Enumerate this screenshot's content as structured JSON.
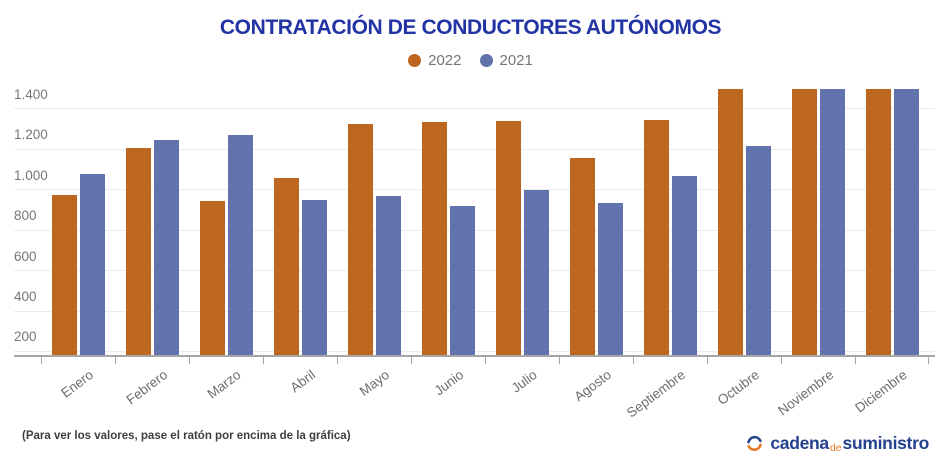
{
  "header": {
    "title": "CONTRATACIÓN DE CONDUCTORES AUTÓNOMOS"
  },
  "legend": {
    "items": [
      {
        "label": "2022"
      },
      {
        "label": "2021"
      }
    ]
  },
  "footer": {
    "note": "(Para ver los valores, pase el ratón por encima de la gráfica)"
  },
  "logo": {
    "icon": "circular-arrows-icon",
    "word1": "cadena",
    "word2": "de",
    "word3": "suministro"
  },
  "colors": {
    "series_2022": "#bd661f",
    "series_2021": "#6272ad",
    "title": "#2233a3",
    "axis_text": "#767676",
    "gridline": "#ebebeb",
    "axis_line": "#a6a6a6",
    "footer_text": "#3f3f3f",
    "logo_blue": "#24418e",
    "logo_orange": "#e87723"
  },
  "chart_data": {
    "type": "bar",
    "title": "CONTRATACIÓN DE CONDUCTORES AUTÓNOMOS",
    "xlabel": "",
    "ylabel": "",
    "categories": [
      "Enero",
      "Febrero",
      "Marzo",
      "Abril",
      "Mayo",
      "Junio",
      "Julio",
      "Agosto",
      "Septiembre",
      "Octubre",
      "Noviembre",
      "Diciembre"
    ],
    "series": [
      {
        "name": "2022",
        "color": "#bd661f",
        "values": [
          975,
          1210,
          945,
          1060,
          1325,
          1335,
          1340,
          1160,
          1345,
          1500,
          1500,
          1500
        ]
      },
      {
        "name": "2021",
        "color": "#6272ad",
        "values": [
          1080,
          1250,
          1275,
          950,
          970,
          920,
          1000,
          935,
          1070,
          1220,
          1500,
          1500
        ]
      }
    ],
    "ylim": [
      180,
      1500
    ],
    "yticks": [
      {
        "value": 200,
        "label": "200"
      },
      {
        "value": 400,
        "label": "400"
      },
      {
        "value": 600,
        "label": "600"
      },
      {
        "value": 800,
        "label": "800"
      },
      {
        "value": 1000,
        "label": "1.000"
      },
      {
        "value": 1200,
        "label": "1.200"
      },
      {
        "value": 1400,
        "label": "1.400"
      }
    ],
    "grid": true,
    "legend_position": "top",
    "bars_clipped_at_max": true
  }
}
